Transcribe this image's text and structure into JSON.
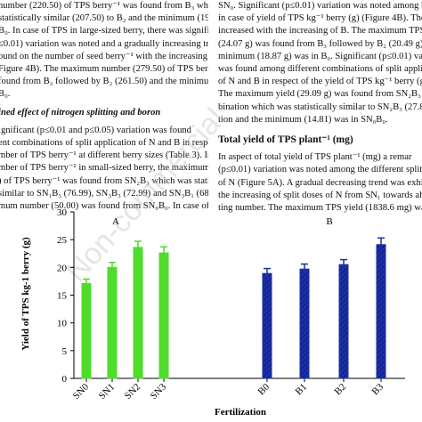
{
  "left_column": {
    "lines_1": [
      "number (220.50) of TPS berry⁻¹ was found from B₃ which",
      "statistically similar (207.50) to B₂ and the minimum (194.50)",
      "B₀. In case of TPS in large-sized berry, there was signifi-",
      "≤0.01) variation was noted and a gradually increasing trend",
      "ound on the number of seed berry⁻¹ with the increasing of B",
      "Figure 4B). The maximum number (279.50) of TPS berry⁻¹",
      "found from B₃ followed by B₂ (261.50) and the minimum",
      "B₀."
    ],
    "heading": "ined effect of nitrogen splitting and boron",
    "lines_2": [
      "ignificant (p≤0.01 and p≤0.05) variation was found",
      "ent combinations of split application of N and B in respects",
      "mber of TPS berry⁻¹ at different berry sizes (Table 3). In case",
      "mber of TPS berry⁻¹ in small-sized berry, the maximum number",
      ") of TPS berry⁻¹ was found from SN₂B₃ which was statistically",
      "similar to SN₁B₃ (76.99), SN₃B₃ (72.99) and SN₃B₁ (68.99).",
      "mum number (50.00) was found from SN₀B₀. In case of"
    ]
  },
  "right_column": {
    "lines_1": [
      "SN₀. Significant (p≤0.01) variation was noted among boron",
      "in case of yield of TPS kg⁻¹ berry (g) (Figure 4B). The",
      "increased with the increasing of B. The maximum TPS",
      "(24.07 g) was found from B₃ followed by B₂ (20.49 g), B₁",
      "minimum (18.87 g) was in B₀. Significant (p≤0.01) variation",
      "was found among different combinations of split application",
      "of N and B in respect of the yield of TPS kg⁻¹ berry (g) (Tab",
      "The maximum yield (29.09 g) was found from SN₂B₃ com-",
      "bination which was statistically similar to SN₂B₃ (27.86) c",
      "tion and the minimum (14.81) was in SN₀B₀."
    ],
    "heading": "Total yield of TPS plant⁻¹ (mg)",
    "lines_2": [
      "    In aspect of total yield of TPS plant⁻¹ (mg) a remar",
      "(p≤0.01) variation was noted among the different split ap",
      "of N (Figure 5A). A gradual decreasing trend was exhibited",
      "the increasing of split doses of N from SN₁ towards ahead of",
      "ting number. The maximum TPS yield (1838.6 mg) was"
    ]
  },
  "watermark": "Non-commercial",
  "chart_data": {
    "type": "bar",
    "y_label": "Yield of TPS kg-1 berry (g)",
    "x_label": "Fertilization",
    "panel_labels": [
      "A",
      "B"
    ],
    "categories": [
      "SN0",
      "SN1",
      "SN2",
      "SN3",
      "B0",
      "B1",
      "B2",
      "B3"
    ],
    "values": [
      17.1,
      20.0,
      23.6,
      22.6,
      18.9,
      19.7,
      20.5,
      24.1
    ],
    "errors": [
      0.8,
      0.9,
      1.1,
      1.1,
      0.9,
      0.9,
      0.9,
      1.2
    ],
    "colors": [
      "#4fdc2a",
      "#4fdc2a",
      "#4fdc2a",
      "#4fdc2a",
      "#1b2fa6",
      "#1b2fa6",
      "#1b2fa6",
      "#1b2fa6"
    ],
    "ylim": [
      0,
      30
    ],
    "yticks": [
      0,
      5,
      10,
      15,
      20,
      25,
      30
    ]
  }
}
